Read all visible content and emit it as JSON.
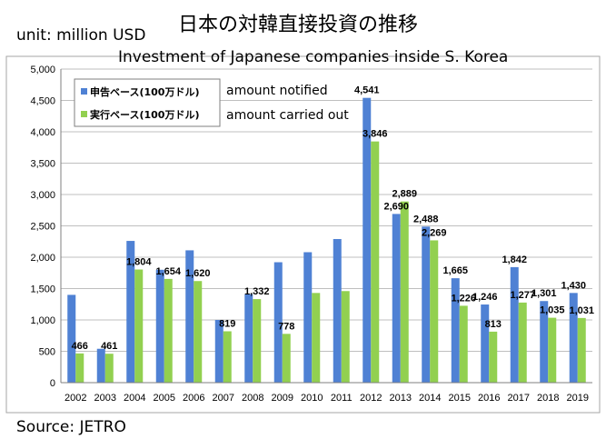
{
  "header": {
    "unit": "unit: million USD",
    "title_jp": "日本の対韓直接投資の推移",
    "title_en": "Investment of Japanese companies inside S. Korea"
  },
  "source": "Source: JETRO",
  "colors": {
    "notified": "#4f81d4",
    "carried": "#92d050",
    "grid": "#bfbfbf"
  },
  "chart_data": {
    "type": "bar",
    "categories": [
      "2002",
      "2003",
      "2004",
      "2005",
      "2006",
      "2007",
      "2008",
      "2009",
      "2010",
      "2011",
      "2012",
      "2013",
      "2014",
      "2015",
      "2016",
      "2017",
      "2018",
      "2019"
    ],
    "ylim": [
      0,
      5000
    ],
    "yticks": [
      "0",
      "500",
      "1,000",
      "1,500",
      "2,000",
      "2,500",
      "3,000",
      "3,500",
      "4,000",
      "4,500",
      "5,000"
    ],
    "grid": true,
    "legend_position": "top-left",
    "series": [
      {
        "name": "申告ベース(100万ドル)",
        "annotation": "amount notified",
        "values": [
          1400,
          540,
          2260,
          1800,
          2110,
          1000,
          1410,
          1920,
          2080,
          2290,
          4541,
          2690,
          2488,
          1665,
          1246,
          1842,
          1301,
          1430
        ],
        "labels": [
          "",
          "",
          "",
          "",
          "",
          "",
          "",
          "",
          "",
          "",
          "4,541",
          "2,690",
          "2,488",
          "1,665",
          "1,246",
          "1,842",
          "1,301",
          "1,430"
        ]
      },
      {
        "name": "実行ベース(100万ドル)",
        "annotation": "amount carried out",
        "values": [
          466,
          461,
          1804,
          1654,
          1620,
          819,
          1332,
          778,
          1430,
          1460,
          3846,
          2889,
          2269,
          1226,
          813,
          1277,
          1035,
          1031
        ],
        "labels": [
          "466",
          "461",
          "1,804",
          "1,654",
          "1,620",
          "819",
          "1,332",
          "778",
          "",
          "",
          "3,846",
          "2,889",
          "2,269",
          "1,226",
          "813",
          "1,277",
          "1,035",
          "1,031"
        ]
      }
    ]
  }
}
